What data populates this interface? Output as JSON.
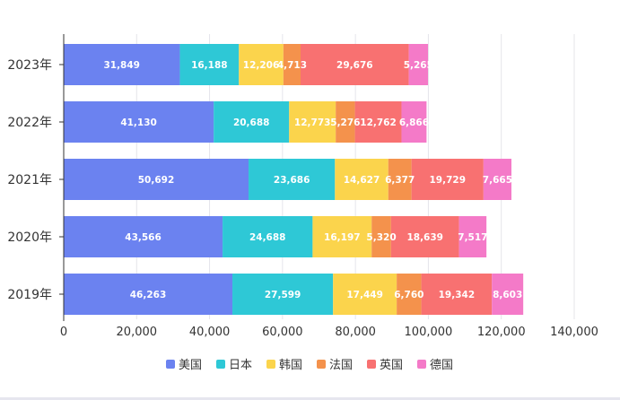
{
  "chart_data": {
    "type": "bar",
    "orientation": "horizontal",
    "stacked": true,
    "categories": [
      "2023年",
      "2022年",
      "2021年",
      "2020年",
      "2019年"
    ],
    "series": [
      {
        "name": "美国",
        "color": "#6b82f0",
        "values": [
          31849,
          41130,
          50692,
          43566,
          46263
        ]
      },
      {
        "name": "日本",
        "color": "#2ec8d6",
        "values": [
          16188,
          20688,
          23686,
          24688,
          27599
        ]
      },
      {
        "name": "韩国",
        "color": "#fbd44c",
        "values": [
          12206,
          12773,
          14627,
          16197,
          17449
        ]
      },
      {
        "name": "法国",
        "color": "#f4924c",
        "values": [
          4713,
          5276,
          6377,
          5320,
          6760
        ]
      },
      {
        "name": "英国",
        "color": "#f87171",
        "values": [
          29676,
          12762,
          19729,
          18639,
          19342
        ]
      },
      {
        "name": "德国",
        "color": "#f47ac8",
        "values": [
          5265,
          6866,
          7665,
          7517,
          8603
        ]
      }
    ],
    "data_labels": [
      [
        "31,849",
        "16,188",
        "12,206",
        "4,713",
        "29,676",
        "5,265"
      ],
      [
        "41,130",
        "20,688",
        "12,773",
        "5,276",
        "12,762",
        "6,866"
      ],
      [
        "50,692",
        "23,686",
        "14,627",
        "6,377",
        "19,729",
        "7,665"
      ],
      [
        "43,566",
        "24,688",
        "16,197",
        "5,320",
        "18,639",
        "7,517"
      ],
      [
        "46,263",
        "27,599",
        "17,449",
        "6,760",
        "19,342",
        "8,603"
      ]
    ],
    "xlim": [
      0,
      140000
    ],
    "x_ticks": [
      0,
      20000,
      40000,
      60000,
      80000,
      100000,
      120000,
      140000
    ],
    "x_tick_labels": [
      "0",
      "20,000",
      "40,000",
      "60,000",
      "80,000",
      "100,000",
      "120,000",
      "140,000"
    ],
    "grid": "vertical",
    "legend_position": "bottom"
  }
}
